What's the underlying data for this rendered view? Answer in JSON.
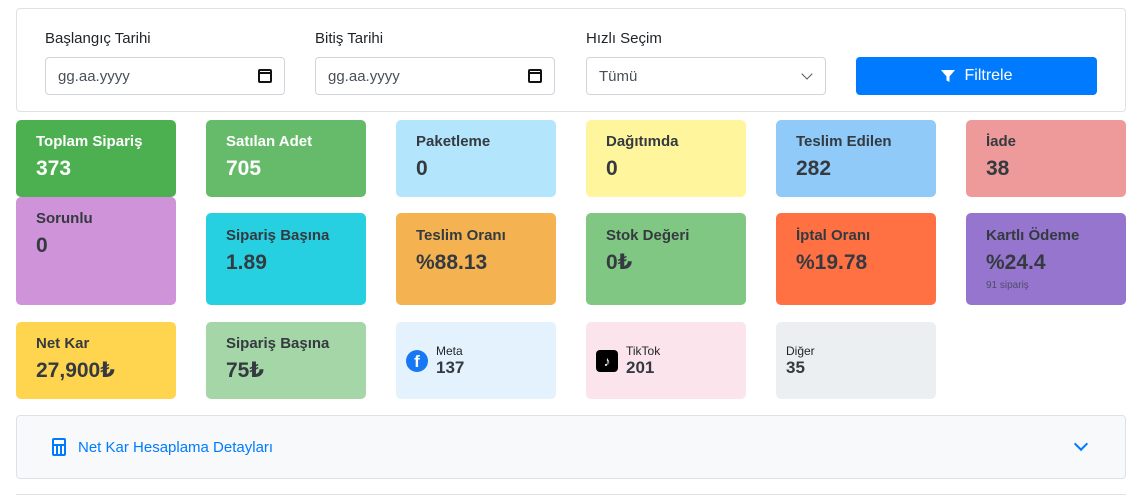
{
  "filters": {
    "start_label": "Başlangıç Tarihi",
    "start_placeholder": "gg.aa.yyyy",
    "end_label": "Bitiş Tarihi",
    "end_placeholder": "gg.aa.yyyy",
    "quick_label": "Hızlı Seçim",
    "quick_value": "Tümü",
    "button_label": "Filtrele"
  },
  "stats": {
    "total_orders": {
      "label": "Toplam Sipariş",
      "value": "373",
      "color": "#4caf50"
    },
    "sold_units": {
      "label": "Satılan Adet",
      "value": "705",
      "color": "#66bb6a"
    },
    "packaging": {
      "label": "Paketleme",
      "value": "0",
      "color": "#b3e5fc"
    },
    "distribution": {
      "label": "Dağıtımda",
      "value": "0",
      "color": "#fff59d"
    },
    "delivered": {
      "label": "Teslim Edilen",
      "value": "282",
      "color": "#90caf9"
    },
    "returns": {
      "label": "İade",
      "value": "38",
      "color": "#ef9a9a"
    },
    "problematic": {
      "label": "Sorunlu",
      "value": "0",
      "color": "#ce93d8"
    },
    "per_order": {
      "label": "Sipariş Başına",
      "value": "1.89",
      "color": "#26d0e0"
    },
    "delivery_rate": {
      "label": "Teslim Oranı",
      "value": "%88.13",
      "color": "#f4b350"
    },
    "stock_value": {
      "label": "Stok Değeri",
      "value": "0₺",
      "color": "#81c784"
    },
    "cancel_rate": {
      "label": "İptal Oranı",
      "value": "%19.78",
      "color": "#ff7043"
    },
    "card_payment": {
      "label": "Kartlı Ödeme",
      "value": "%24.4",
      "sub": "91 sipariş",
      "color": "#9575cd"
    },
    "net_profit": {
      "label": "Net Kar",
      "value": "27,900₺",
      "color": "#ffd54f"
    },
    "per_order_revenue": {
      "label": "Sipariş Başına",
      "value": "75₺",
      "color": "#a5d6a7"
    }
  },
  "sources": {
    "meta": {
      "label": "Meta",
      "value": "137",
      "icon": "facebook-icon",
      "color": "#e3f2fd"
    },
    "tiktok": {
      "label": "TikTok",
      "value": "201",
      "icon": "tiktok-icon",
      "color": "#fce4ec"
    },
    "other": {
      "label": "Diğer",
      "value": "35",
      "color": "#eceff1"
    }
  },
  "accordion": {
    "title": "Net Kar Hesaplama Detayları",
    "icon": "calculator-icon"
  }
}
